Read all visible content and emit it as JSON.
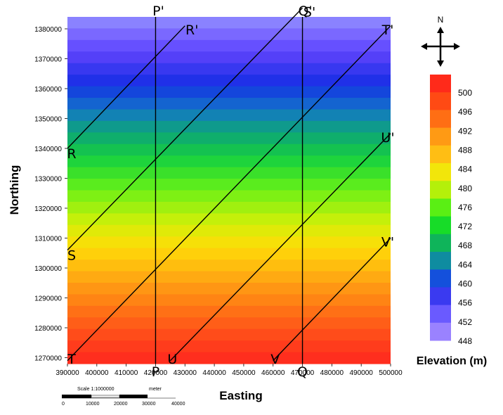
{
  "map": {
    "x_label": "Easting",
    "y_label": "Northing",
    "x_ticks": [
      "390000",
      "400000",
      "410000",
      "420000",
      "430000",
      "440000",
      "450000",
      "460000",
      "470000",
      "480000",
      "490000",
      "500000"
    ],
    "y_ticks": [
      "1270000",
      "1280000",
      "1290000",
      "1300000",
      "1310000",
      "1320000",
      "1330000",
      "1340000",
      "1350000",
      "1360000",
      "1370000",
      "1380000"
    ],
    "x_range": [
      390000,
      500000
    ],
    "y_range": [
      1268000,
      1384000
    ],
    "profile_lines": [
      {
        "start": "P",
        "end": "P'",
        "from": [
          420000,
          1268000
        ],
        "to": [
          420000,
          1384000
        ]
      },
      {
        "start": "Q",
        "end": "Q'",
        "from": [
          470000,
          1268000
        ],
        "to": [
          470000,
          1384000
        ]
      },
      {
        "start": "R",
        "end": "R'",
        "from": [
          390000,
          1340000
        ],
        "to": [
          430000,
          1381000
        ]
      },
      {
        "start": "S",
        "end": "S'",
        "from": [
          390000,
          1306000
        ],
        "to": [
          470000,
          1387000
        ]
      },
      {
        "start": "T",
        "end": "T'",
        "from": [
          390000,
          1269000
        ],
        "to": [
          500000,
          1381000
        ]
      },
      {
        "start": "U",
        "end": "U'",
        "from": [
          425000,
          1269000
        ],
        "to": [
          500000,
          1345000
        ]
      },
      {
        "start": "V",
        "end": "V'",
        "from": [
          460000,
          1269000
        ],
        "to": [
          500000,
          1310000
        ]
      }
    ]
  },
  "legend": {
    "title": "Elevation (m)",
    "labels": [
      "500",
      "496",
      "492",
      "488",
      "484",
      "480",
      "476",
      "472",
      "468",
      "464",
      "460",
      "456",
      "452",
      "448"
    ],
    "colors": [
      "#ff2a1a",
      "#ff4a14",
      "#ff6e14",
      "#ff9a14",
      "#ffbe14",
      "#f2e60a",
      "#b4f00a",
      "#5aef14",
      "#17dc28",
      "#0fb45a",
      "#0f8ca0",
      "#1450dc",
      "#3a3af0",
      "#6a5aff",
      "#9a82ff"
    ]
  },
  "north_arrow": {
    "label": "N"
  },
  "scale_bar": {
    "scale_text": "Scale 1:1000000",
    "unit": "meter",
    "labels": [
      "0",
      "10000",
      "20000",
      "30000",
      "40000"
    ]
  }
}
